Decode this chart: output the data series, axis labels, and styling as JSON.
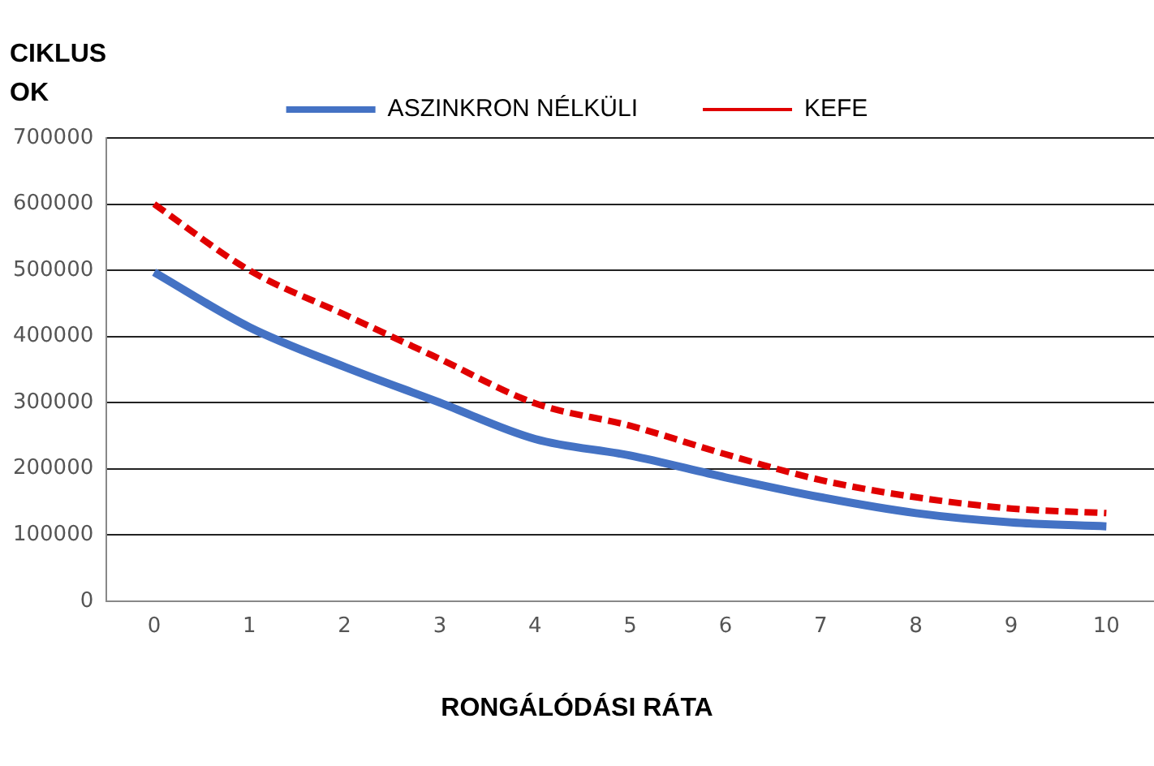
{
  "chart_data": {
    "type": "line",
    "xlabel": "RONGÁLÓDÁSI RÁTA",
    "ylabel": "CIKLUSOK",
    "categories": [
      "0",
      "1",
      "2",
      "3",
      "4",
      "5",
      "6",
      "7",
      "8",
      "9",
      "10"
    ],
    "series": [
      {
        "name": "ASZINKRON NÉLKÜLI",
        "color": "#4472c4",
        "line_style": "solid",
        "values": [
          497000,
          414000,
          354000,
          300000,
          245000,
          220000,
          187000,
          157000,
          133000,
          119000,
          113000
        ]
      },
      {
        "name": "KEFE",
        "color": "#e00000",
        "line_style": "dashed",
        "values": [
          600000,
          500000,
          433000,
          366000,
          299000,
          265000,
          222000,
          183000,
          157000,
          140000,
          133000
        ]
      }
    ],
    "ylim": [
      0,
      700000
    ],
    "yticks": [
      0,
      100000,
      200000,
      300000,
      400000,
      500000,
      600000,
      700000
    ],
    "grid": "y",
    "legend": "top",
    "marker": "none"
  }
}
